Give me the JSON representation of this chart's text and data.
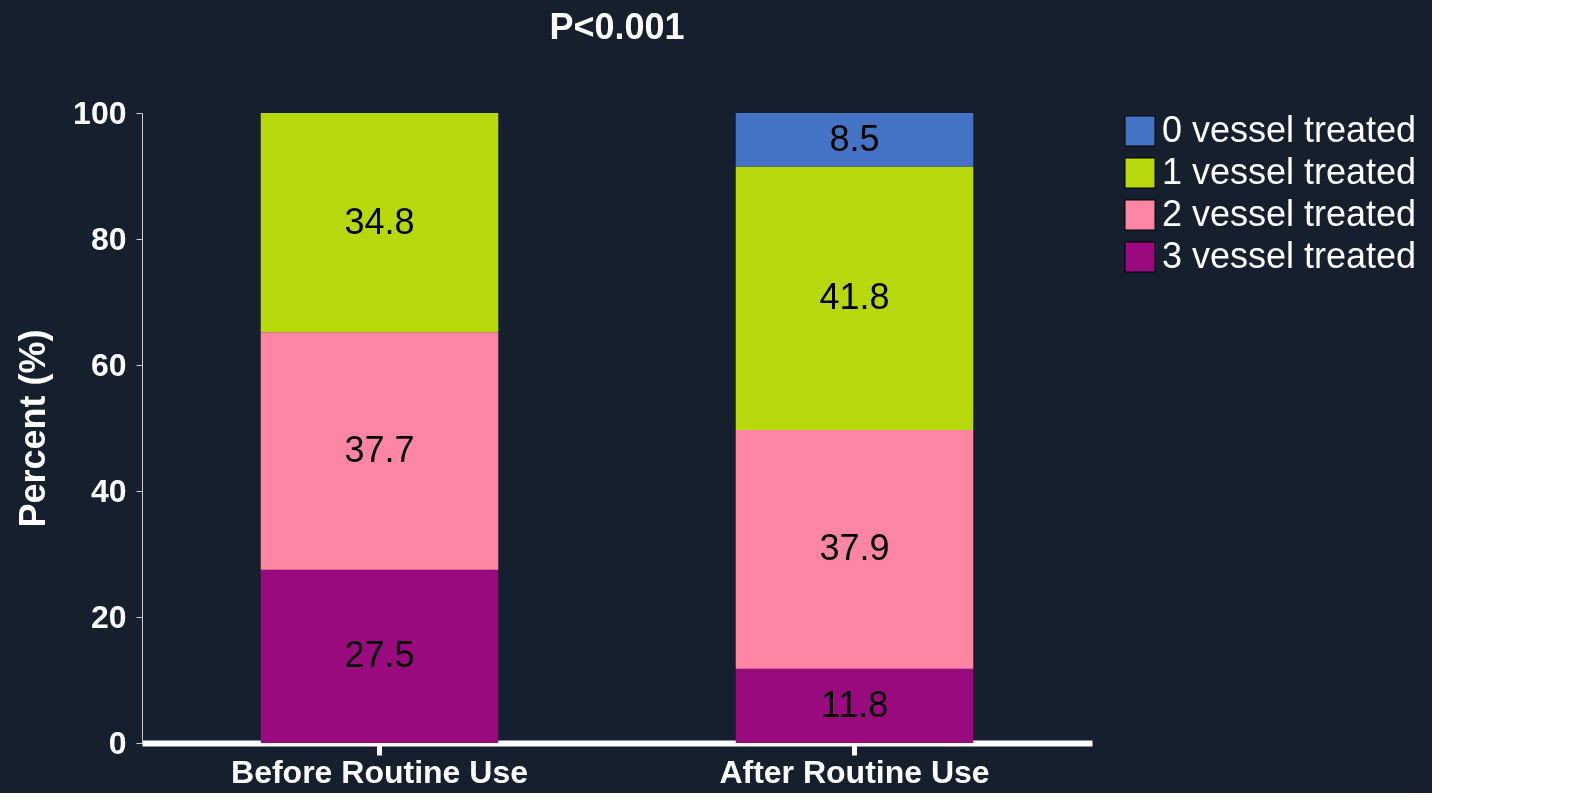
{
  "chart_data": {
    "type": "bar",
    "title": "P<0.001",
    "ylabel": "Percent (%)",
    "categories": [
      "Before Routine Use",
      "After Routine Use"
    ],
    "stacked": true,
    "series": [
      {
        "name": "3 vessel treated",
        "color": "#990a7f",
        "values": [
          27.5,
          11.8
        ]
      },
      {
        "name": "2 vessel treated",
        "color": "#ff85a4",
        "values": [
          37.7,
          37.9
        ]
      },
      {
        "name": "1 vessel treated",
        "color": "#b8d80e",
        "values": [
          34.8,
          41.8
        ]
      },
      {
        "name": "0 vessel treated",
        "color": "#4472c4",
        "values": [
          null,
          8.5
        ]
      }
    ],
    "ylim": [
      0,
      100
    ],
    "yticks": [
      0,
      20,
      40,
      60,
      80,
      100
    ],
    "data_labels": true,
    "grid": false,
    "legend": "right"
  }
}
